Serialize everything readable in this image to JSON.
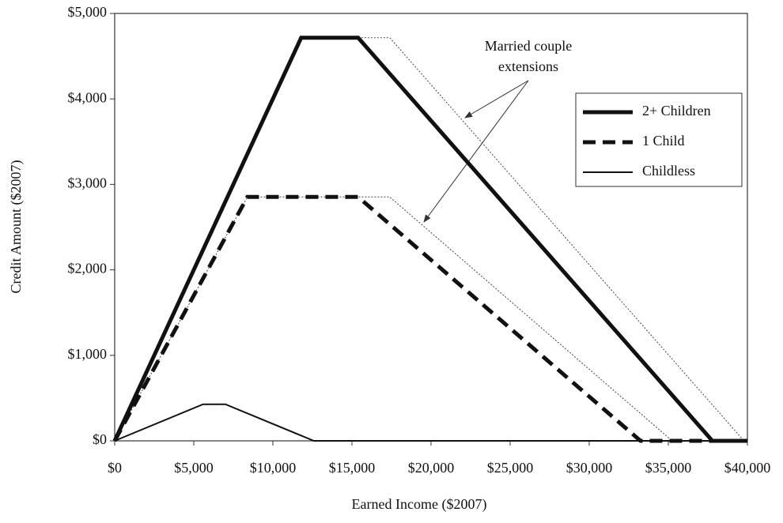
{
  "chart_data": {
    "type": "line",
    "x_label": "Earned Income ($2007)",
    "y_label": "Credit Amount ($2007)",
    "annotation": [
      "Married couple",
      "extensions"
    ],
    "xlim": [
      0,
      40000
    ],
    "ylim": [
      0,
      5000
    ],
    "xticks": [
      {
        "value": 0,
        "label": "$0"
      },
      {
        "value": 5000,
        "label": "$5,000"
      },
      {
        "value": 10000,
        "label": "$10,000"
      },
      {
        "value": 15000,
        "label": "$15,000"
      },
      {
        "value": 20000,
        "label": "$20,000"
      },
      {
        "value": 25000,
        "label": "$25,000"
      },
      {
        "value": 30000,
        "label": "$30,000"
      },
      {
        "value": 35000,
        "label": "$35,000"
      },
      {
        "value": 40000,
        "label": "$40,000"
      }
    ],
    "yticks": [
      {
        "value": 0,
        "label": "$0"
      },
      {
        "value": 1000,
        "label": "$1,000"
      },
      {
        "value": 2000,
        "label": "$2,000"
      },
      {
        "value": 3000,
        "label": "$3,000"
      },
      {
        "value": 4000,
        "label": "$4,000"
      },
      {
        "value": 5000,
        "label": "$5,000"
      }
    ],
    "legend": "upper right",
    "series": [
      {
        "name": "2+ Children",
        "color": "#111111",
        "style": "thick",
        "x": [
          0,
          11790,
          15390,
          37783,
          40000
        ],
        "values": [
          0,
          4716,
          4716,
          0,
          0
        ]
      },
      {
        "name": "1 Child",
        "color": "#111111",
        "style": "dashed",
        "x": [
          0,
          8390,
          15390,
          33241,
          40000
        ],
        "values": [
          0,
          2853,
          2853,
          0,
          0
        ]
      },
      {
        "name": "Childless",
        "color": "#111111",
        "style": "thin",
        "x": [
          0,
          5590,
          7000,
          12590,
          40000
        ],
        "values": [
          0,
          428,
          428,
          0,
          0
        ]
      },
      {
        "color": "#444444",
        "style": "dotted",
        "x": [
          15390,
          17390,
          39783
        ],
        "values": [
          4716,
          4716,
          0
        ]
      },
      {
        "color": "#444444",
        "style": "dotted",
        "x": [
          0,
          8390,
          17390,
          35241
        ],
        "values": [
          0,
          2853,
          2853,
          0
        ]
      }
    ]
  }
}
